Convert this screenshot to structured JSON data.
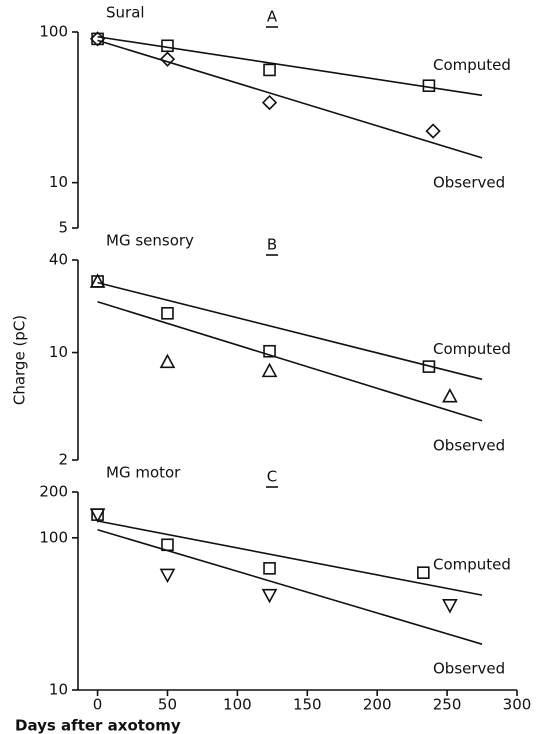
{
  "chart_data": [
    {
      "type": "scatter",
      "title": "Sural",
      "label": "A",
      "log_y": true,
      "xlim": [
        -14,
        300
      ],
      "ylim": [
        5,
        100
      ],
      "yticks": [
        100,
        10,
        5
      ],
      "series": [
        {
          "name": "Computed",
          "marker": "square",
          "x": [
            0,
            50,
            123,
            237
          ],
          "values": [
            90,
            81,
            56,
            44
          ],
          "fit_x": [
            0,
            275
          ],
          "fit_values": [
            93,
            38
          ]
        },
        {
          "name": "Observed",
          "marker": "diamond",
          "x": [
            0,
            50,
            123,
            240
          ],
          "values": [
            90,
            66,
            34,
            22
          ],
          "fit_x": [
            0,
            275
          ],
          "fit_values": [
            88,
            14.6
          ]
        }
      ]
    },
    {
      "type": "scatter",
      "title": "MG sensory",
      "label": "B",
      "log_y": true,
      "y_label": "Charge (pC)",
      "xlim": [
        -14,
        300
      ],
      "ylim": [
        2,
        40
      ],
      "yticks": [
        40,
        10,
        2
      ],
      "series": [
        {
          "name": "Computed",
          "marker": "square",
          "x": [
            0,
            50,
            123,
            237
          ],
          "values": [
            29,
            18,
            10.2,
            8.1
          ],
          "fit_x": [
            0,
            275
          ],
          "fit_values": [
            28.5,
            6.7
          ]
        },
        {
          "name": "Observed",
          "marker": "triangle",
          "x": [
            0,
            50,
            123,
            252
          ],
          "values": [
            29,
            8.7,
            7.6,
            5.2
          ],
          "fit_x": [
            0,
            275
          ],
          "fit_values": [
            21.4,
            3.6
          ]
        }
      ]
    },
    {
      "type": "scatter",
      "title": "MG motor",
      "label": "C",
      "log_y": true,
      "x_label": "Days after axotomy",
      "xlim": [
        -14,
        300
      ],
      "xticks": [
        0,
        50,
        100,
        150,
        200,
        250,
        300
      ],
      "ylim": [
        10,
        200
      ],
      "yticks": [
        200,
        100,
        10
      ],
      "series": [
        {
          "name": "Computed",
          "marker": "square",
          "x": [
            0,
            50,
            123,
            233
          ],
          "values": [
            142,
            90,
            63,
            59
          ],
          "fit_x": [
            0,
            275
          ],
          "fit_values": [
            129,
            42
          ]
        },
        {
          "name": "Observed",
          "marker": "triangle-down",
          "x": [
            0,
            50,
            123,
            252
          ],
          "values": [
            142,
            57,
            42,
            36
          ],
          "fit_x": [
            0,
            275
          ],
          "fit_values": [
            113,
            20
          ]
        }
      ]
    }
  ]
}
